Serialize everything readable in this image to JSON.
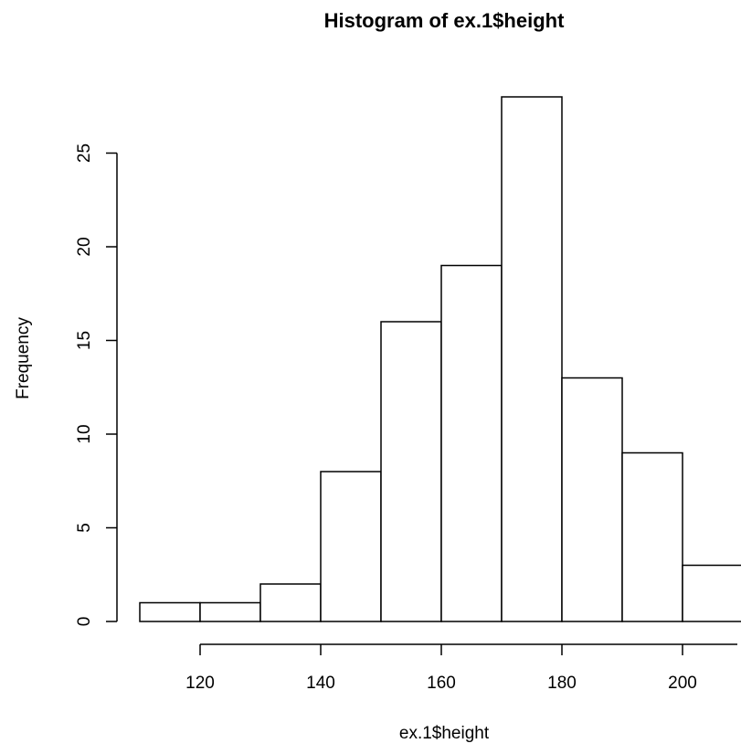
{
  "chart_data": {
    "type": "bar",
    "title": "Histogram of ex.1$height",
    "xlabel": "ex.1$height",
    "ylabel": "Frequency",
    "bins": [
      {
        "from": 110,
        "to": 120,
        "count": 1
      },
      {
        "from": 120,
        "to": 130,
        "count": 1
      },
      {
        "from": 130,
        "to": 140,
        "count": 2
      },
      {
        "from": 140,
        "to": 150,
        "count": 8
      },
      {
        "from": 150,
        "to": 160,
        "count": 16
      },
      {
        "from": 160,
        "to": 170,
        "count": 19
      },
      {
        "from": 170,
        "to": 180,
        "count": 28
      },
      {
        "from": 180,
        "to": 190,
        "count": 13
      },
      {
        "from": 190,
        "to": 200,
        "count": 9
      },
      {
        "from": 200,
        "to": 210,
        "count": 3
      }
    ],
    "x_ticks": [
      "120",
      "140",
      "160",
      "180",
      "200"
    ],
    "y_ticks": [
      "0",
      "5",
      "10",
      "15",
      "20",
      "25"
    ],
    "xlim": [
      110,
      210
    ],
    "ylim": [
      0,
      28
    ],
    "grid": false,
    "colors": {
      "fill": "#ffffff",
      "stroke": "#000000"
    }
  }
}
